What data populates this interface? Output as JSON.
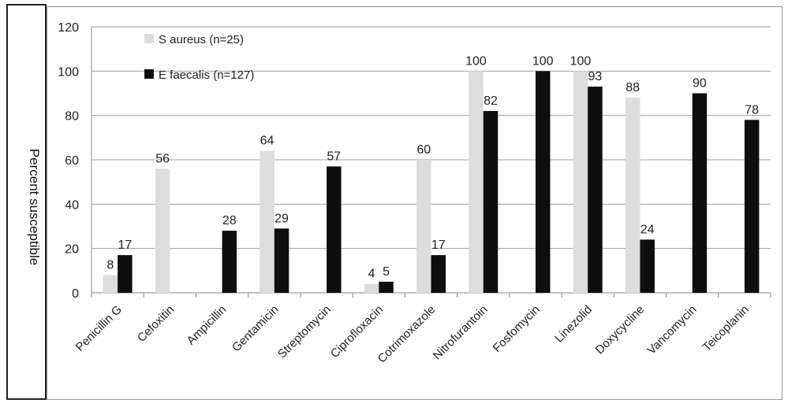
{
  "chart_data": {
    "type": "bar",
    "title": "",
    "xlabel": "",
    "ylabel": "Percent susceptible",
    "ylim": [
      0,
      120
    ],
    "yticks": [
      0,
      20,
      40,
      60,
      80,
      100,
      120
    ],
    "grid": true,
    "legend_position": "top-left",
    "categories": [
      "Penicillin G",
      "Cefoxitin",
      "Ampicillin",
      "Gentamicin",
      "Streptomycin",
      "Ciprofloxacin",
      "Cotrimoxazole",
      "Nitrofurantoin",
      "Fosfomycin",
      "Linezolid",
      "Doxycycline",
      "Vancomycin",
      "Teicoplanin"
    ],
    "series": [
      {
        "name": "S aureus (n=25)",
        "color": "#dcdedd",
        "values": [
          8,
          56,
          null,
          64,
          null,
          4,
          60,
          100,
          null,
          100,
          88,
          null,
          null
        ]
      },
      {
        "name": "E faecalis (n=127)",
        "color": "#0d0f0e",
        "values": [
          17,
          null,
          28,
          29,
          57,
          5,
          17,
          82,
          100,
          93,
          24,
          90,
          78
        ]
      }
    ]
  }
}
